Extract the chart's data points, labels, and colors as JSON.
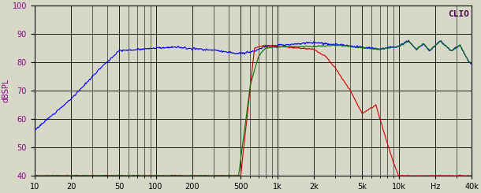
{
  "title": "CLIO",
  "ylabel": "dBSPL",
  "xmin": 10,
  "xmax": 40000,
  "ymin": 40,
  "ymax": 100,
  "yticks": [
    40,
    50,
    60,
    70,
    80,
    90,
    100
  ],
  "xtick_labels": [
    "10",
    "20",
    "50",
    "100",
    "200",
    "500",
    "1k",
    "2k",
    "5k",
    "10k",
    "Hz",
    "40k"
  ],
  "xtick_values": [
    10,
    20,
    50,
    100,
    200,
    500,
    1000,
    2000,
    5000,
    10000,
    20000,
    40000
  ],
  "minor_xtick_values": [
    30,
    40,
    60,
    70,
    80,
    90,
    300,
    400,
    600,
    700,
    800,
    900,
    3000,
    4000,
    6000,
    7000,
    8000,
    9000,
    30000
  ],
  "background_color": "#d8d8c8",
  "grid_color": "#000000",
  "line_blue_color": "#0000ff",
  "line_red_color": "#cc0000",
  "line_green_color": "#007700",
  "title_color": "#440044",
  "label_color": "#880088"
}
